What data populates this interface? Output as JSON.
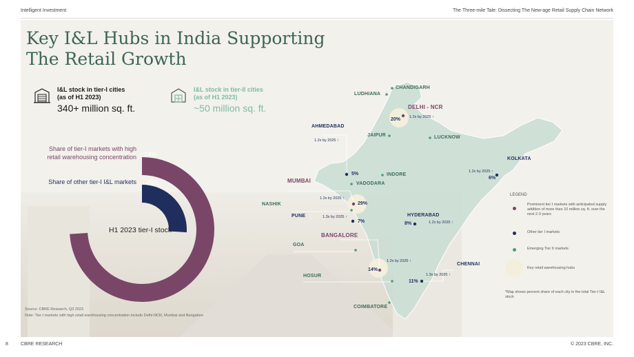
{
  "header": {
    "left": "Intelligent Investment",
    "right": "The Three-mile Tale: Dissecting The New-age Retail Supply Chain Network"
  },
  "title_line1": "Key I&L Hubs in India Supporting",
  "title_line2": "The Retail Growth",
  "stats": [
    {
      "label_line1": "I&L stock in tier-I cities",
      "label_line2": "(as of H1 2023)",
      "value": "340+ million sq. ft."
    },
    {
      "label_line1": "I&L stock in tier-II cities",
      "label_line2": "(as of H1 2023)",
      "value": "~50 million sq. ft."
    }
  ],
  "chart_data": {
    "type": "pie",
    "title": "H1 2023 tier-I stock",
    "series": [
      {
        "name": "Share of tier-I markets with high retail warehousing concentration",
        "value": 74,
        "label": "74%",
        "color": "#7a4668"
      },
      {
        "name": "Share of other tier-I I&L markets",
        "value": 26,
        "label": "26%",
        "color": "#1f2e5c"
      }
    ]
  },
  "donut_labels": {
    "tier1_line1": "Share of tier-I markets with high",
    "tier1_line2": "retail warehousing concentration",
    "other": "Share of other tier-I I&L markets"
  },
  "source_line1": "Source: CBRE Research, Q3 2023",
  "source_line2": "Note: Tier-I markets with high retail warehousing concentration include Delhi-NCR, Mumbai and Bangalore",
  "map": {
    "cities": [
      {
        "name": "CHANDIGARH",
        "type": "emerging"
      },
      {
        "name": "LUDHIANA",
        "type": "emerging"
      },
      {
        "name": "DELHI - NCR",
        "type": "prominent",
        "share": "20%",
        "growth": "1.2x by 2025"
      },
      {
        "name": "AHMEDABAD",
        "type": "other",
        "share": "5%",
        "growth": "1.2x by 2025"
      },
      {
        "name": "JAIPUR",
        "type": "emerging"
      },
      {
        "name": "LUCKNOW",
        "type": "emerging"
      },
      {
        "name": "KOLKATA",
        "type": "other",
        "share": "6%",
        "growth": "1.2x by 2025"
      },
      {
        "name": "INDORE",
        "type": "emerging"
      },
      {
        "name": "VADODARA",
        "type": "emerging"
      },
      {
        "name": "MUMBAI",
        "type": "prominent",
        "share": "29%",
        "growth": "1.2x by 2025"
      },
      {
        "name": "NASHIK",
        "type": "emerging"
      },
      {
        "name": "PUNE",
        "type": "other",
        "share": "7%",
        "growth": "1.3x by 2025"
      },
      {
        "name": "HYDERABAD",
        "type": "other",
        "share": "8%",
        "growth": "1.2x by 2025"
      },
      {
        "name": "BANGALORE",
        "type": "prominent",
        "share": "14%",
        "growth": "1.2x by 2025"
      },
      {
        "name": "GOA",
        "type": "emerging"
      },
      {
        "name": "CHENNAI",
        "type": "other",
        "share": "11%",
        "growth": "1.3x by 2025"
      },
      {
        "name": "HOSUR",
        "type": "emerging"
      },
      {
        "name": "COIMBATORE",
        "type": "emerging"
      }
    ]
  },
  "legend": {
    "title": "LEGEND",
    "prominent": "Prominent tier I markets with anticipated supply addition of more than 10 million sq. ft. over the next 2-3 years",
    "other": "Other tier I markets",
    "emerging": "Emerging Tier II markets",
    "hubs": "Key retail warehousing hubs"
  },
  "map_note": "*Map shows percent share of each city in the total Tier-I I&L stock",
  "colors": {
    "prominent": "#7a4668",
    "other": "#1f2e5c",
    "emerging": "#4d9b78",
    "accent": "#3d6457",
    "map_fill": "#c9ddd4"
  },
  "footer": {
    "page": "8",
    "section": "CBRE RESEARCH",
    "copyright": "© 2023 CBRE, INC."
  }
}
